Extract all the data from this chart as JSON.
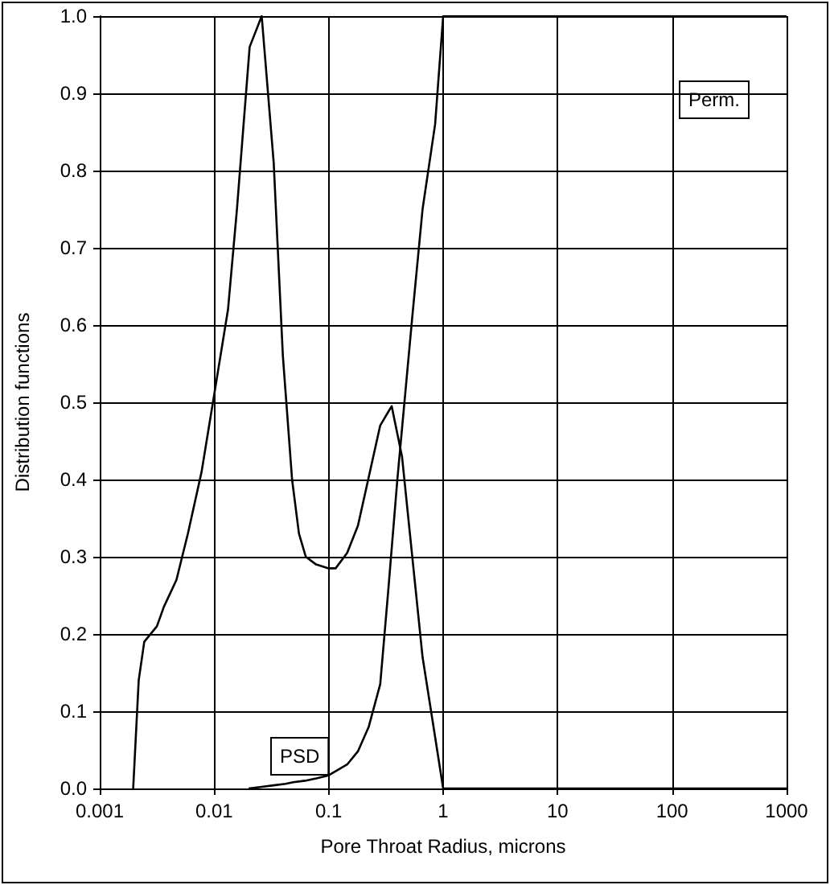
{
  "chart_data": {
    "type": "line",
    "xlabel": "Pore Throat Radius, microns",
    "ylabel": "Distribution functions",
    "log": "x",
    "grid": true,
    "legend": false,
    "marker": "none",
    "line_style": "solid",
    "xlim": [
      0.001,
      1000
    ],
    "xticks": [
      0.001,
      0.01,
      0.1,
      1,
      10,
      100,
      1000
    ],
    "ylim": [
      0,
      1
    ],
    "yticks": [
      {
        "value": 0,
        "label": "0.0"
      },
      0.1,
      0.2,
      0.3,
      0.4,
      0.5,
      0.6,
      0.7,
      0.8,
      0.9,
      {
        "value": 1,
        "label": "1.0"
      }
    ],
    "series": [
      {
        "name": "PSD",
        "color": "#000000",
        "x": [
          0.00196,
          0.00219,
          0.00245,
          0.00316,
          0.00363,
          0.00468,
          0.00589,
          0.00776,
          0.01,
          0.0132,
          0.0158,
          0.0204,
          0.026,
          0.0331,
          0.0398,
          0.0479,
          0.055,
          0.0631,
          0.0776,
          0.1,
          0.115,
          0.145,
          0.18,
          0.282,
          0.355,
          0.437,
          0.661,
          0.794,
          1,
          1000
        ],
        "values": [
          0,
          0.14,
          0.19,
          0.21,
          0.235,
          0.27,
          0.33,
          0.41,
          0.51,
          0.62,
          0.75,
          0.96,
          1.0,
          0.81,
          0.56,
          0.4,
          0.33,
          0.3,
          0.29,
          0.285,
          0.285,
          0.305,
          0.34,
          0.47,
          0.495,
          0.43,
          0.17,
          0.095,
          0,
          0
        ]
      },
      {
        "name": "Perm.",
        "color": "#000000",
        "x": [
          0.02,
          0.026,
          0.033,
          0.042,
          0.049,
          0.062,
          0.078,
          0.1,
          0.145,
          0.18,
          0.224,
          0.282,
          0.331,
          0.398,
          0.537,
          0.661,
          0.851,
          1,
          1000
        ],
        "values": [
          0,
          0.002,
          0.004,
          0.006,
          0.008,
          0.01,
          0.013,
          0.017,
          0.031,
          0.048,
          0.08,
          0.135,
          0.255,
          0.4,
          0.61,
          0.75,
          0.86,
          1.0,
          1.0
        ]
      }
    ]
  }
}
